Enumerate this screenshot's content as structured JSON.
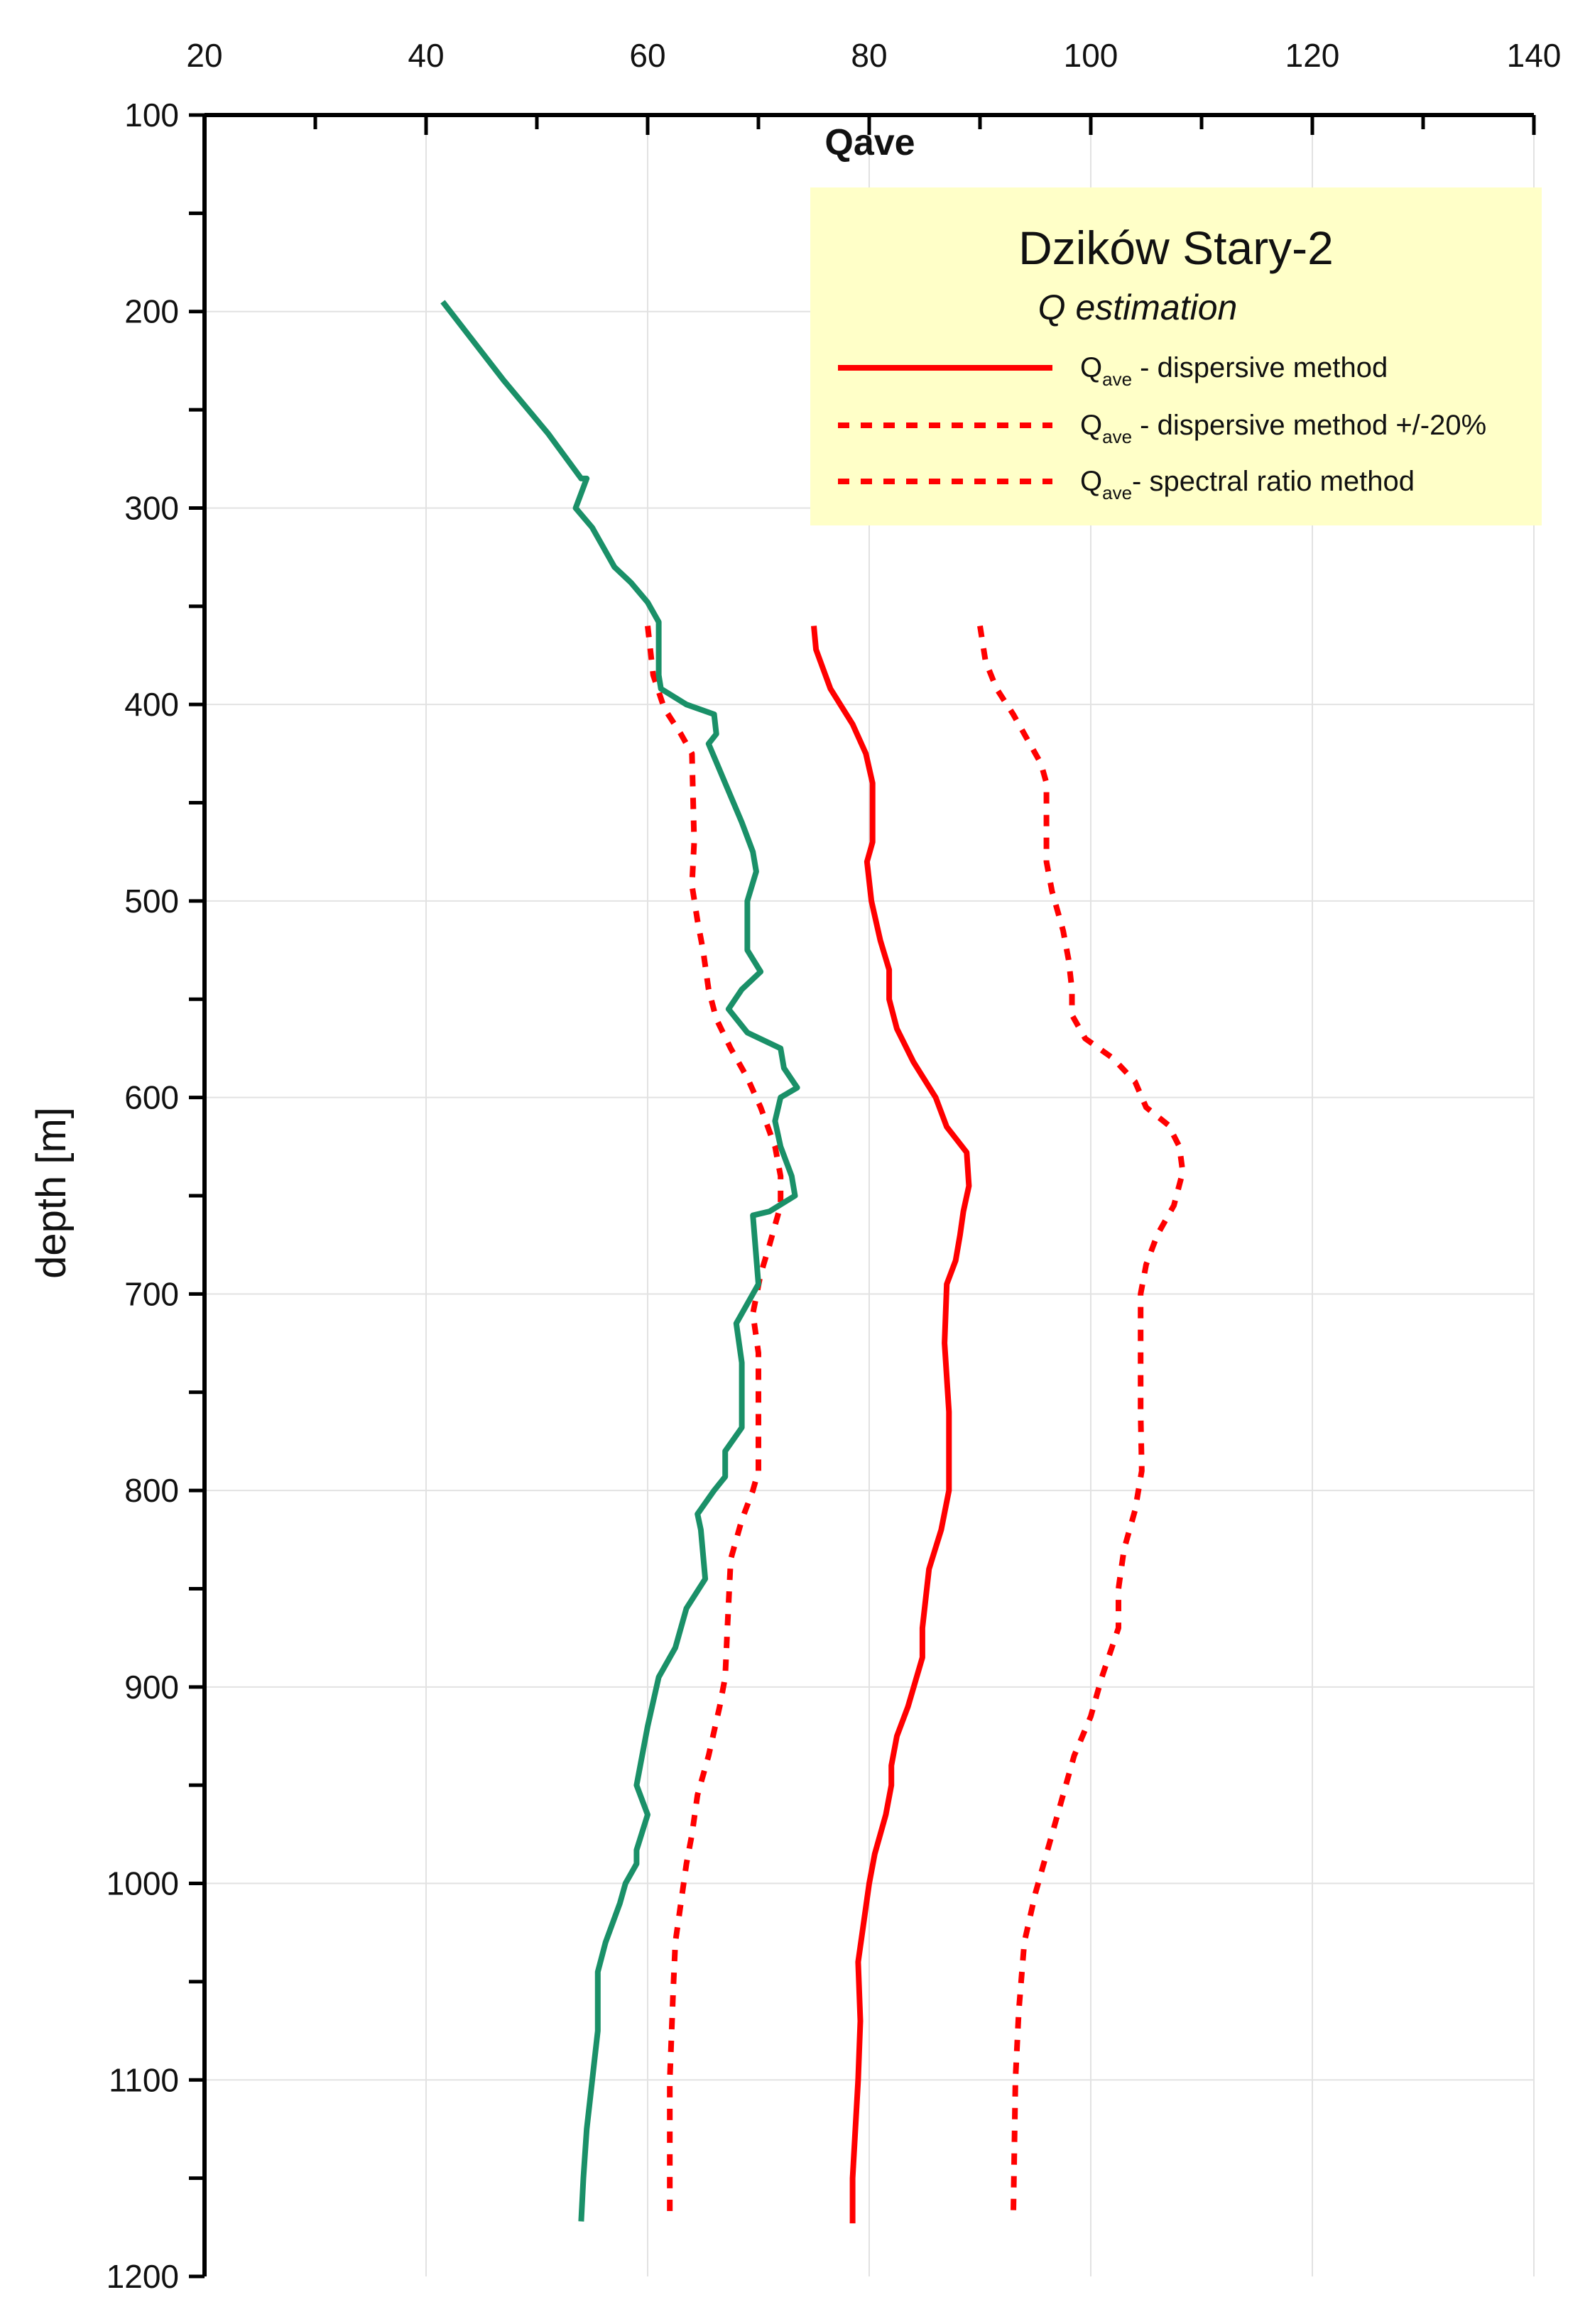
{
  "chart_data": {
    "type": "line",
    "title": "Qave",
    "xlabel": "",
    "ylabel": "depth [m]",
    "x_axis_position": "top",
    "y_inverted": true,
    "xlim": [
      20,
      140
    ],
    "ylim": [
      100,
      1200
    ],
    "x_ticks": [
      20,
      40,
      60,
      80,
      100,
      120,
      140
    ],
    "y_ticks": [
      100,
      200,
      300,
      400,
      500,
      600,
      700,
      800,
      900,
      1000,
      1100,
      1200
    ],
    "grid": true,
    "legend": {
      "title": "Dzików Stary-2",
      "subtitle": "Q estimation",
      "placement": "top-right",
      "entries": [
        {
          "series_index": 0,
          "main": "Q",
          "sub": "ave",
          "rest": " - dispersive method"
        },
        {
          "series_index": 1,
          "main": "Q",
          "sub": "ave",
          "rest": " - dispersive method +/-20%"
        },
        {
          "series_index": 2,
          "main": "Q",
          "sub": "ave",
          "rest": "- spectral ratio method"
        }
      ]
    },
    "series": [
      {
        "name": "Qave - dispersive method",
        "color": "#ff0000",
        "style": "solid",
        "points": [
          [
            75,
            360
          ],
          [
            75.2,
            372
          ],
          [
            76.5,
            392
          ],
          [
            78.5,
            410
          ],
          [
            79.7,
            425
          ],
          [
            80.3,
            440
          ],
          [
            80.3,
            470
          ],
          [
            79.8,
            480
          ],
          [
            80.2,
            500
          ],
          [
            81,
            520
          ],
          [
            81.8,
            535
          ],
          [
            81.8,
            550
          ],
          [
            82.5,
            565
          ],
          [
            84,
            582
          ],
          [
            86,
            600
          ],
          [
            87,
            615
          ],
          [
            88.8,
            628
          ],
          [
            89,
            645
          ],
          [
            88.5,
            658
          ],
          [
            88.2,
            670
          ],
          [
            87.8,
            683
          ],
          [
            87,
            695
          ],
          [
            86.8,
            725
          ],
          [
            87.2,
            760
          ],
          [
            87.2,
            800
          ],
          [
            86.5,
            820
          ],
          [
            85.4,
            840
          ],
          [
            84.8,
            870
          ],
          [
            84.8,
            885
          ],
          [
            83.5,
            910
          ],
          [
            82.5,
            925
          ],
          [
            82,
            940
          ],
          [
            82,
            950
          ],
          [
            81.5,
            965
          ],
          [
            80.5,
            985
          ],
          [
            80,
            1000
          ],
          [
            79.5,
            1020
          ],
          [
            79,
            1040
          ],
          [
            79.2,
            1070
          ],
          [
            79,
            1100
          ],
          [
            78.5,
            1150
          ],
          [
            78.5,
            1173
          ]
        ]
      },
      {
        "name": "Qave - dispersive method -20%",
        "color": "#ff0000",
        "style": "dotted",
        "points": [
          [
            60,
            360
          ],
          [
            60.5,
            385
          ],
          [
            61.5,
            402
          ],
          [
            63,
            415
          ],
          [
            64,
            425
          ],
          [
            64.2,
            470
          ],
          [
            64,
            492
          ],
          [
            64.5,
            510
          ],
          [
            65,
            525
          ],
          [
            65.5,
            545
          ],
          [
            66.2,
            560
          ],
          [
            67.5,
            575
          ],
          [
            69,
            590
          ],
          [
            70.2,
            605
          ],
          [
            71.5,
            625
          ],
          [
            72,
            640
          ],
          [
            72,
            655
          ],
          [
            71,
            675
          ],
          [
            70.2,
            690
          ],
          [
            69.5,
            710
          ],
          [
            70,
            730
          ],
          [
            70,
            790
          ],
          [
            69.5,
            800
          ],
          [
            68.5,
            815
          ],
          [
            67.5,
            835
          ],
          [
            67.2,
            870
          ],
          [
            67,
            895
          ],
          [
            66.5,
            910
          ],
          [
            65.5,
            935
          ],
          [
            64.5,
            955
          ],
          [
            64,
            975
          ],
          [
            63.5,
            990
          ],
          [
            63,
            1010
          ],
          [
            62.5,
            1030
          ],
          [
            62.3,
            1055
          ],
          [
            62,
            1100
          ],
          [
            62,
            1172
          ]
        ]
      },
      {
        "name": "Qave - dispersive method +20%",
        "color": "#ff0000",
        "style": "dotted",
        "points": [
          [
            90,
            360
          ],
          [
            90.5,
            378
          ],
          [
            91.5,
            392
          ],
          [
            93,
            405
          ],
          [
            94.5,
            420
          ],
          [
            95.5,
            430
          ],
          [
            96,
            440
          ],
          [
            96,
            465
          ],
          [
            96,
            480
          ],
          [
            96.5,
            495
          ],
          [
            97.5,
            515
          ],
          [
            98,
            530
          ],
          [
            98.3,
            545
          ],
          [
            98.3,
            558
          ],
          [
            99.5,
            570
          ],
          [
            102,
            580
          ],
          [
            104,
            592
          ],
          [
            105,
            605
          ],
          [
            107,
            614
          ],
          [
            108,
            625
          ],
          [
            108.3,
            638
          ],
          [
            107.5,
            655
          ],
          [
            106,
            670
          ],
          [
            105,
            685
          ],
          [
            104.5,
            700
          ],
          [
            104.5,
            725
          ],
          [
            104.5,
            760
          ],
          [
            104.6,
            790
          ],
          [
            104,
            810
          ],
          [
            103,
            830
          ],
          [
            102.5,
            850
          ],
          [
            102.5,
            870
          ],
          [
            101,
            895
          ],
          [
            100,
            915
          ],
          [
            98.5,
            935
          ],
          [
            97.5,
            955
          ],
          [
            96.5,
            975
          ],
          [
            96,
            985
          ],
          [
            95,
            1005
          ],
          [
            94,
            1030
          ],
          [
            93.5,
            1065
          ],
          [
            93.2,
            1100
          ],
          [
            93,
            1172
          ]
        ]
      },
      {
        "name": "Qave - spectral ratio method",
        "color": "#1a9068",
        "style": "solid",
        "points": [
          [
            41.5,
            195
          ],
          [
            47,
            235
          ],
          [
            51,
            262
          ],
          [
            54,
            285
          ],
          [
            54.5,
            285
          ],
          [
            53.5,
            300
          ],
          [
            55,
            310
          ],
          [
            57,
            330
          ],
          [
            58.5,
            338
          ],
          [
            60,
            348
          ],
          [
            61,
            358
          ],
          [
            61,
            385
          ],
          [
            61.2,
            392
          ],
          [
            63.5,
            400
          ],
          [
            66,
            405
          ],
          [
            66.2,
            415
          ],
          [
            65.5,
            420
          ],
          [
            67,
            440
          ],
          [
            68.5,
            460
          ],
          [
            69.5,
            475
          ],
          [
            69.8,
            485
          ],
          [
            69,
            500
          ],
          [
            69,
            525
          ],
          [
            70.2,
            536
          ],
          [
            68.5,
            545
          ],
          [
            67.3,
            555
          ],
          [
            69,
            567
          ],
          [
            72,
            575
          ],
          [
            72.3,
            585
          ],
          [
            73.5,
            595
          ],
          [
            72,
            600
          ],
          [
            71.5,
            612
          ],
          [
            72,
            625
          ],
          [
            73,
            640
          ],
          [
            73.3,
            650
          ],
          [
            71,
            658
          ],
          [
            69.5,
            660
          ],
          [
            70,
            695
          ],
          [
            69,
            705
          ],
          [
            68,
            715
          ],
          [
            68.5,
            735
          ],
          [
            68.5,
            768
          ],
          [
            67,
            780
          ],
          [
            67,
            793
          ],
          [
            66,
            800
          ],
          [
            64.5,
            812
          ],
          [
            64.8,
            820
          ],
          [
            65.2,
            845
          ],
          [
            63.5,
            860
          ],
          [
            62.5,
            880
          ],
          [
            61,
            895
          ],
          [
            60,
            920
          ],
          [
            59,
            950
          ],
          [
            60,
            965
          ],
          [
            59,
            983
          ],
          [
            59,
            990
          ],
          [
            58,
            1000
          ],
          [
            57.5,
            1010
          ],
          [
            56.2,
            1030
          ],
          [
            55.5,
            1045
          ],
          [
            55.5,
            1060
          ],
          [
            55.5,
            1075
          ],
          [
            55,
            1100
          ],
          [
            54.5,
            1125
          ],
          [
            54.2,
            1150
          ],
          [
            54,
            1172
          ]
        ]
      }
    ]
  }
}
